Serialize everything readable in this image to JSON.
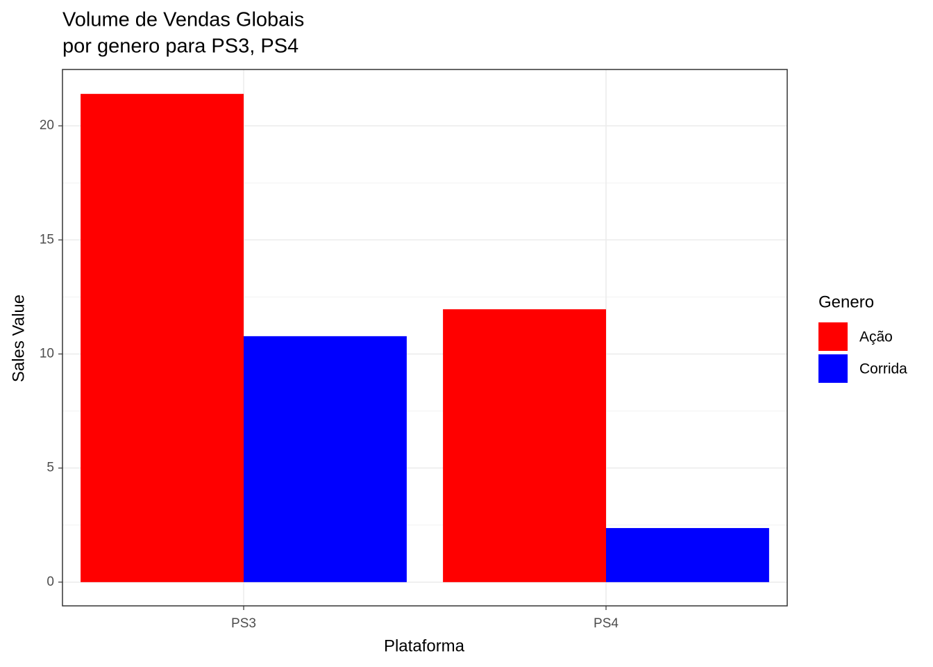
{
  "chart_data": {
    "type": "bar",
    "title": [
      "Volume de Vendas Globais",
      "por genero para PS3, PS4"
    ],
    "x_label": "Plataforma",
    "y_label": "Sales Value",
    "categories": [
      "PS3",
      "PS4"
    ],
    "legend_title": "Genero",
    "series": [
      {
        "name": "Ação",
        "color": "#ff0000",
        "values": [
          21.4,
          11.96
        ]
      },
      {
        "name": "Corrida",
        "color": "#0000ff",
        "values": [
          10.78,
          2.37
        ]
      }
    ],
    "ylim": [
      -1.04,
      22.47
    ],
    "yticks": [
      0,
      5,
      10,
      15,
      20
    ],
    "grid": true,
    "legend": "right"
  }
}
